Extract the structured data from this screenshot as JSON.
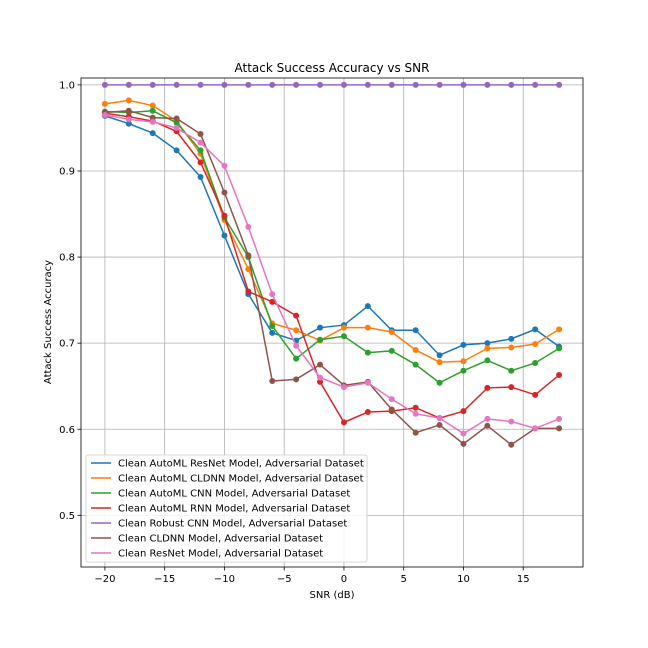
{
  "chart_data": {
    "type": "line",
    "title": "Attack Success Accuracy vs SNR",
    "xlabel": "SNR (dB)",
    "ylabel": "Attack Success Accuracy",
    "xlim": [
      -22,
      20
    ],
    "ylim": [
      0.44,
      1.008
    ],
    "xticks": [
      -20,
      -15,
      -10,
      -5,
      0,
      5,
      10,
      15
    ],
    "yticks": [
      0.5,
      0.6,
      0.7,
      0.8,
      0.9,
      1.0
    ],
    "xtick_labels": [
      "−20",
      "−15",
      "−10",
      "−5",
      "0",
      "5",
      "10",
      "15"
    ],
    "ytick_labels": [
      "0.5",
      "0.6",
      "0.7",
      "0.8",
      "0.9",
      "1.0"
    ],
    "grid": true,
    "legend_position": "bottom-left",
    "x": [
      -20,
      -18,
      -16,
      -14,
      -12,
      -10,
      -8,
      -6,
      -4,
      -2,
      0,
      2,
      4,
      6,
      8,
      10,
      12,
      14,
      16,
      18
    ],
    "series": [
      {
        "name": "Clean AutoML ResNet Model, Adversarial Dataset",
        "color": "#1f77b4",
        "values": [
          0.964,
          0.955,
          0.944,
          0.924,
          0.893,
          0.825,
          0.757,
          0.712,
          0.703,
          0.718,
          0.721,
          0.743,
          0.715,
          0.715,
          0.686,
          0.698,
          0.7,
          0.705,
          0.716,
          0.696
        ]
      },
      {
        "name": "Clean AutoML CLDNN Model, Adversarial Dataset",
        "color": "#ff7f0e",
        "values": [
          0.978,
          0.982,
          0.976,
          0.958,
          0.92,
          0.843,
          0.786,
          0.723,
          0.715,
          0.703,
          0.718,
          0.718,
          0.713,
          0.692,
          0.678,
          0.679,
          0.694,
          0.695,
          0.699,
          0.716
        ]
      },
      {
        "name": "Clean AutoML CNN Model, Adversarial Dataset",
        "color": "#2ca02c",
        "values": [
          0.969,
          0.968,
          0.97,
          0.956,
          0.924,
          0.846,
          0.8,
          0.72,
          0.682,
          0.704,
          0.708,
          0.689,
          0.691,
          0.675,
          0.654,
          0.668,
          0.68,
          0.668,
          0.677,
          0.694
        ]
      },
      {
        "name": "Clean AutoML RNN Model, Adversarial Dataset",
        "color": "#d62728",
        "values": [
          0.967,
          0.963,
          0.958,
          0.946,
          0.91,
          0.848,
          0.76,
          0.748,
          0.732,
          0.655,
          0.608,
          0.62,
          0.621,
          0.625,
          0.613,
          0.621,
          0.648,
          0.649,
          0.64,
          0.663
        ]
      },
      {
        "name": "Clean Robust CNN Model, Adversarial Dataset",
        "color": "#9467bd",
        "values": [
          1.0,
          1.0,
          1.0,
          1.0,
          1.0,
          1.0,
          1.0,
          1.0,
          1.0,
          1.0,
          1.0,
          1.0,
          1.0,
          1.0,
          1.0,
          1.0,
          1.0,
          1.0,
          1.0,
          1.0
        ]
      },
      {
        "name": "Clean CLDNN Model, Adversarial Dataset",
        "color": "#8c564b",
        "values": [
          0.968,
          0.97,
          0.962,
          0.961,
          0.943,
          0.875,
          0.802,
          0.656,
          0.658,
          0.675,
          0.651,
          0.655,
          0.623,
          0.596,
          0.605,
          0.583,
          0.604,
          0.582,
          0.601,
          0.601
        ]
      },
      {
        "name": "Clean ResNet Model, Adversarial Dataset",
        "color": "#e377c2",
        "values": [
          0.965,
          0.96,
          0.957,
          0.95,
          0.933,
          0.906,
          0.835,
          0.757,
          0.697,
          0.66,
          0.649,
          0.654,
          0.635,
          0.618,
          0.613,
          0.595,
          0.612,
          0.609,
          0.601,
          0.612
        ]
      }
    ]
  }
}
